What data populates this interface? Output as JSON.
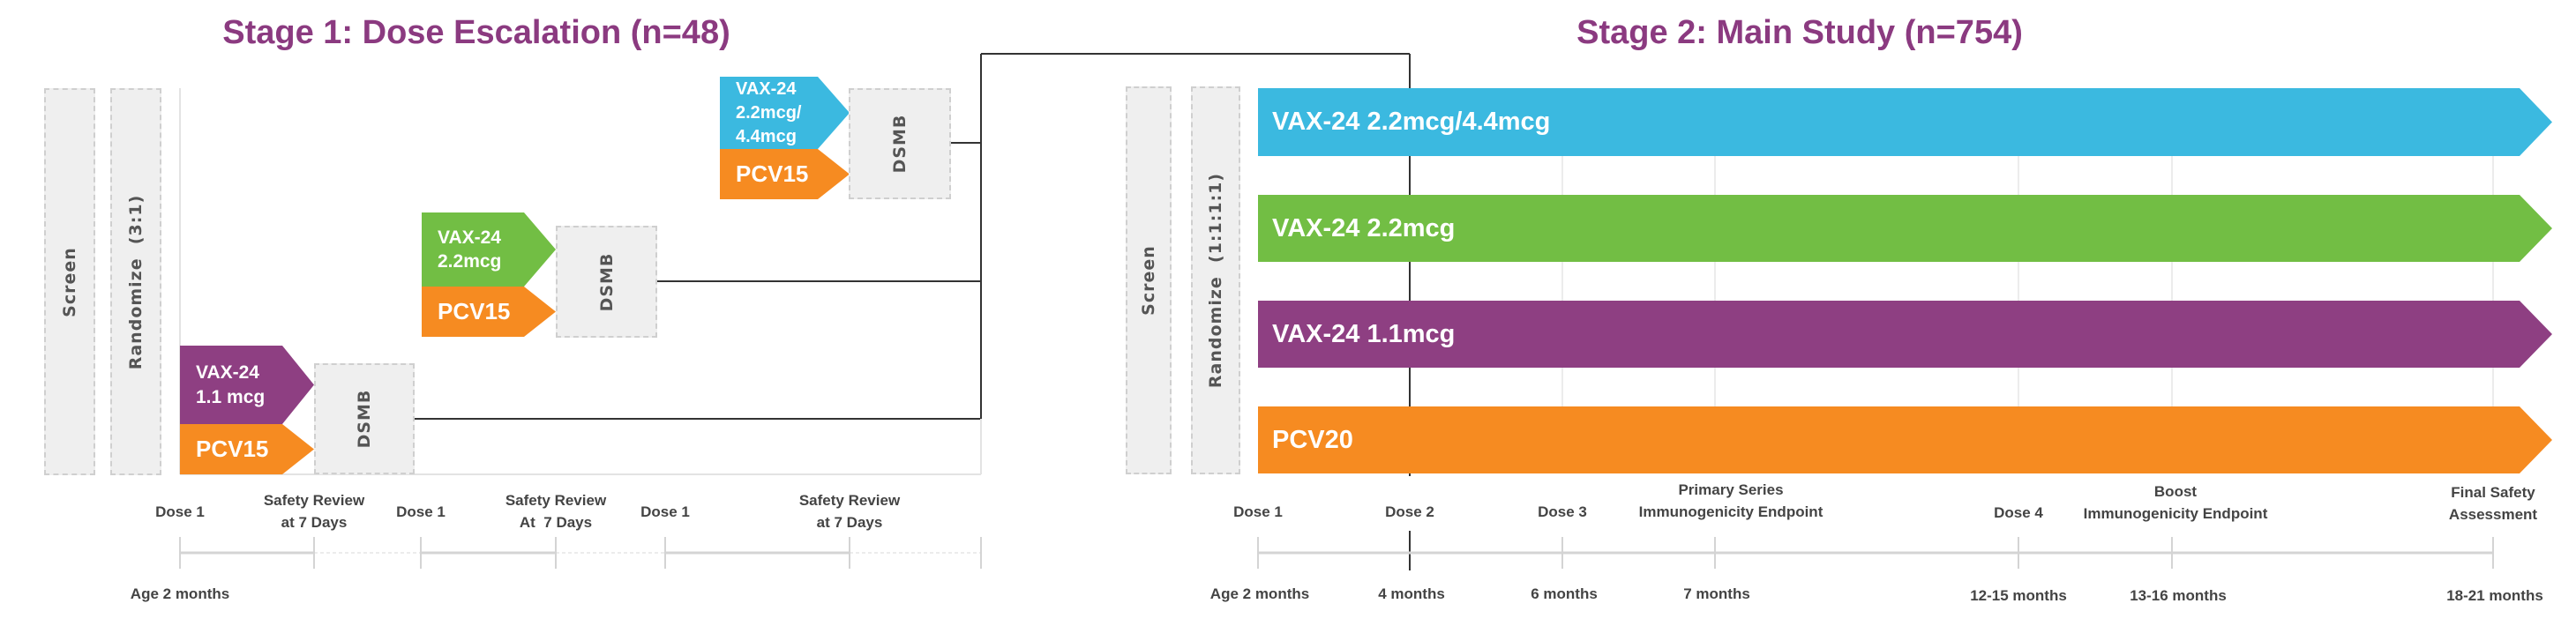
{
  "stage1": {
    "title": "Stage 1: Dose Escalation (n=48)",
    "screen_label": "Screen",
    "randomize_label": "Randomize  (3:1)",
    "cohorts": [
      {
        "vaccine_line1": "VAX-24",
        "vaccine_line2": "1.1 mcg",
        "comparator": "PCV15",
        "review": "DSMB",
        "color": "#8E3F82"
      },
      {
        "vaccine_line1": "VAX-24",
        "vaccine_line2": "2.2mcg",
        "comparator": "PCV15",
        "review": "DSMB",
        "color": "#72BE44"
      },
      {
        "vaccine_line1": "VAX-24",
        "vaccine_line2": "2.2mcg/",
        "vaccine_line3": "4.4mcg",
        "comparator": "PCV15",
        "review": "DSMB",
        "color": "#3BB9E0"
      }
    ],
    "timeline": [
      {
        "line1": "Dose 1"
      },
      {
        "line1": "Safety Review",
        "line2": "at 7 Days"
      },
      {
        "line1": "Dose 1"
      },
      {
        "line1": "Safety Review",
        "line2": "At  7 Days"
      },
      {
        "line1": "Dose 1"
      },
      {
        "line1": "Safety Review",
        "line2": "at 7 Days"
      }
    ],
    "age_label": "Age 2 months"
  },
  "stage2": {
    "title": "Stage 2: Main Study (n=754)",
    "screen_label": "Screen",
    "randomize_label": "Randomize  (1:1:1:1)",
    "arms": [
      {
        "label": "VAX-24 2.2mcg/4.4mcg",
        "color": "#3BB9E0"
      },
      {
        "label": "VAX-24 2.2mcg",
        "color": "#72BE44"
      },
      {
        "label": "VAX-24 1.1mcg",
        "color": "#8E3F82"
      },
      {
        "label": "PCV20",
        "color": "#F68B21"
      }
    ],
    "timeline": [
      {
        "event": "Dose 1",
        "time": "Age 2 months"
      },
      {
        "event": "Dose 2",
        "time": "4 months"
      },
      {
        "event": "Dose 3",
        "time": "6 months"
      },
      {
        "event_line1": "Primary Series",
        "event": "Immunogenicity Endpoint",
        "time": "7 months"
      },
      {
        "event": "Dose 4",
        "time": "12-15 months"
      },
      {
        "event_line1": "Boost",
        "event": "Immunogenicity Endpoint",
        "time": "13-16 months"
      },
      {
        "event_line1": "Final Safety",
        "event": "Assessment",
        "time": "18-21 months"
      }
    ]
  },
  "colors": {
    "title": "#8B3A80",
    "comparator": "#F68B21"
  }
}
